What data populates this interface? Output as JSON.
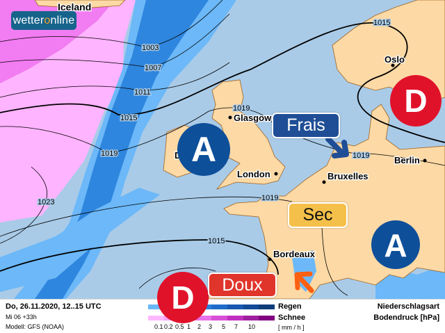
{
  "brand": {
    "logo_text_a": "wetter",
    "logo_text_b": "o",
    "logo_text_c": "nline"
  },
  "places": {
    "iceland": "Iceland",
    "glasgow": "Glasgow",
    "london": "London",
    "bruxelles": "Bruxelles",
    "berlin": "Berlin",
    "oslo": "Oslo",
    "bordeaux": "Bordeaux",
    "dublin_partial": "D"
  },
  "isobars": {
    "l1003": "1003",
    "l1007": "1007",
    "l1011": "1011",
    "l1015a": "1015",
    "l1019a": "1019",
    "l1023": "1023",
    "l1015b": "1015",
    "l1019b": "1019",
    "l1019c": "1019",
    "l1019d": "1019",
    "l1015c": "1015"
  },
  "callouts": {
    "frais": "Frais",
    "sec": "Sec",
    "doux": "Doux"
  },
  "pressure_centers": {
    "high": "A",
    "low": "D"
  },
  "colors": {
    "high": "#0e4f9a",
    "low": "#e0122a",
    "frais": "#1f4e96",
    "sec": "#f5c04a",
    "doux": "#e0352b",
    "arrow_warm": "#ff6010",
    "land": "#fcd9a5",
    "sea": "#a9cbe8"
  },
  "legend": {
    "date": "Do, 26.11.2020, 12..15 UTC",
    "run": "Mi 06 +33h",
    "model": "Modell: GFS (NOAA)",
    "rain": "Regen",
    "snow": "Schnee",
    "unit": "[ mm / h ]",
    "type_label": "Niederschlagsart",
    "pressure_label": "Bodendruck [hPa]",
    "ticks": [
      "0.1",
      "0.2",
      "0.5",
      "1",
      "2",
      "3",
      "5",
      "7",
      "10"
    ],
    "rain_colors": [
      "#6cb8f8",
      "#4ea4f2",
      "#3a90e6",
      "#2a7ed8",
      "#1e6cc8",
      "#1858b0",
      "#124a98",
      "#0e3c78"
    ],
    "snow_colors": [
      "#ffb8ff",
      "#f8a0f8",
      "#f088f0",
      "#e870e8",
      "#d850d8",
      "#c030c0",
      "#a020a0",
      "#800080"
    ]
  }
}
